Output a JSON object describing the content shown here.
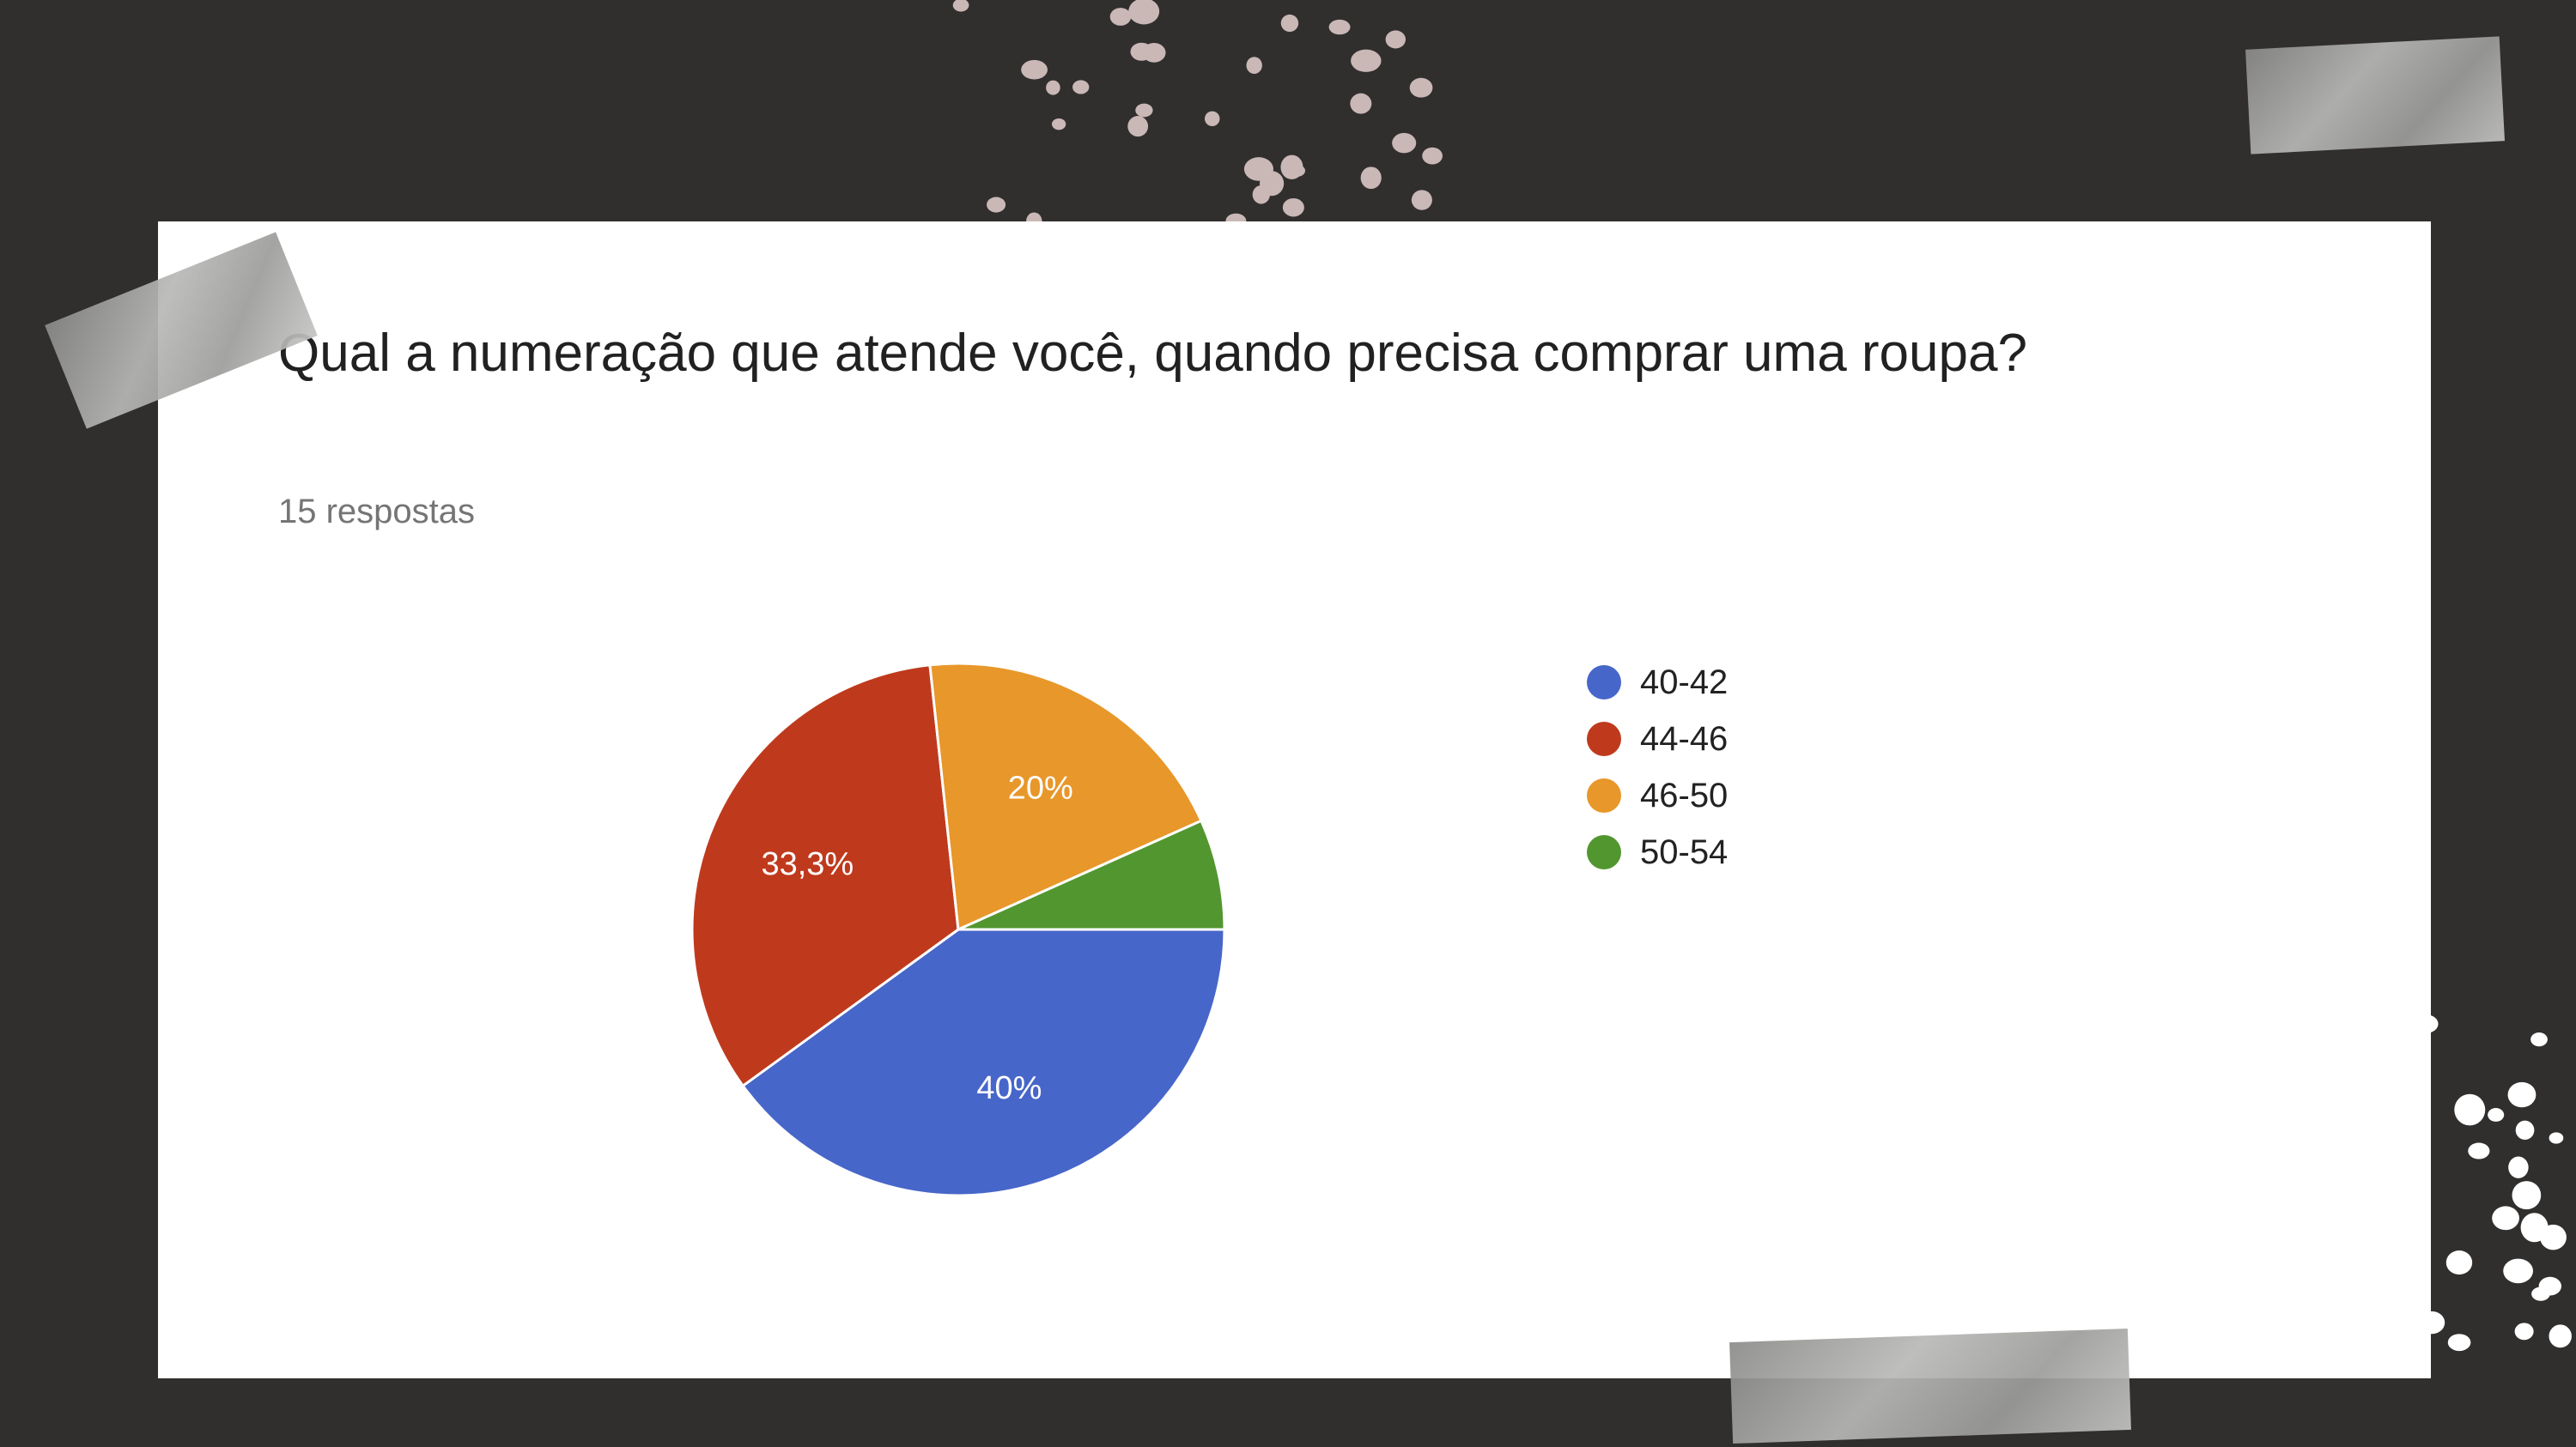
{
  "card": {
    "question": "Qual a numeração que atende você, quando precisa comprar uma roupa?",
    "responses": "15 respostas"
  },
  "colors": {
    "background": "#302f2e",
    "card": "#ffffff",
    "decor_dots_top": "#c9b8b6",
    "decor_dots_bottom": "#ffffff",
    "tape": "#a9a9a7"
  },
  "chart_data": {
    "type": "pie",
    "categories": [
      "40-42",
      "44-46",
      "46-50",
      "50-54"
    ],
    "values": [
      40,
      33.3,
      20,
      6.7
    ],
    "labels": [
      "40%",
      "33,3%",
      "20%",
      ""
    ],
    "colors": [
      "#4766c9",
      "#bf3a1d",
      "#e8972a",
      "#52962f"
    ],
    "legend": "right",
    "start": "3 o'clock, clockwise"
  }
}
